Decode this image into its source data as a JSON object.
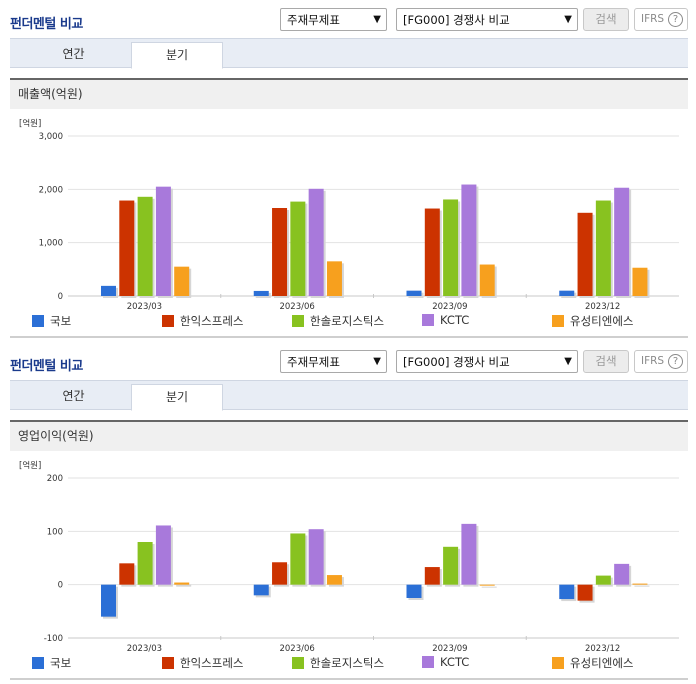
{
  "panels": [
    {
      "title": "펀더멘털 비교",
      "select_a": "주재무제표",
      "select_b": "[FG000] 경쟁사 비교",
      "search_label": "검색",
      "ifrs_label": "IFRS",
      "ifrs_help": "?",
      "tab_year": "연간",
      "tab_quarter": "분기",
      "chart_title": "매출액(억원)"
    },
    {
      "title": "펀더멘털 비교",
      "select_a": "주재무제표",
      "select_b": "[FG000] 경쟁사 비교",
      "search_label": "검색",
      "ifrs_label": "IFRS",
      "ifrs_help": "?",
      "tab_year": "연간",
      "tab_quarter": "분기",
      "chart_title": "영업이익(억원)"
    }
  ],
  "legend": [
    "국보",
    "한익스프레스",
    "한솔로지스틱스",
    "KCTC",
    "유성티엔에스"
  ],
  "colors": [
    "#2b6fd6",
    "#cc3300",
    "#88c220",
    "#a879db",
    "#f7a01e"
  ],
  "chart_data": [
    {
      "type": "bar",
      "unit": "[억원]",
      "categories": [
        "2023/03",
        "2023/06",
        "2023/09",
        "2023/12"
      ],
      "series": [
        {
          "name": "국보",
          "values": [
            190,
            95,
            100,
            100
          ]
        },
        {
          "name": "한익스프레스",
          "values": [
            1790,
            1650,
            1640,
            1560
          ]
        },
        {
          "name": "한솔로지스틱스",
          "values": [
            1860,
            1770,
            1810,
            1790
          ]
        },
        {
          "name": "KCTC",
          "values": [
            2050,
            2010,
            2090,
            2030
          ]
        },
        {
          "name": "유성티엔에스",
          "values": [
            550,
            650,
            590,
            530
          ]
        }
      ],
      "ylim": [
        0,
        3000
      ],
      "yticks": [
        0,
        1000,
        2000,
        3000
      ],
      "ytick_labels": [
        "0",
        "1,000",
        "2,000",
        "3,000"
      ]
    },
    {
      "type": "bar",
      "unit": "[억원]",
      "categories": [
        "2023/03",
        "2023/06",
        "2023/09",
        "2023/12"
      ],
      "series": [
        {
          "name": "국보",
          "values": [
            -60,
            -20,
            -25,
            -27
          ]
        },
        {
          "name": "한익스프레스",
          "values": [
            40,
            42,
            33,
            -30
          ]
        },
        {
          "name": "한솔로지스틱스",
          "values": [
            80,
            96,
            71,
            17
          ]
        },
        {
          "name": "KCTC",
          "values": [
            111,
            104,
            114,
            39
          ]
        },
        {
          "name": "유성티엔에스",
          "values": [
            4,
            18,
            0,
            2
          ]
        }
      ],
      "ylim": [
        -100,
        200
      ],
      "yticks": [
        -100,
        0,
        100,
        200
      ],
      "ytick_labels": [
        "-100",
        "0",
        "100",
        "200"
      ]
    }
  ]
}
